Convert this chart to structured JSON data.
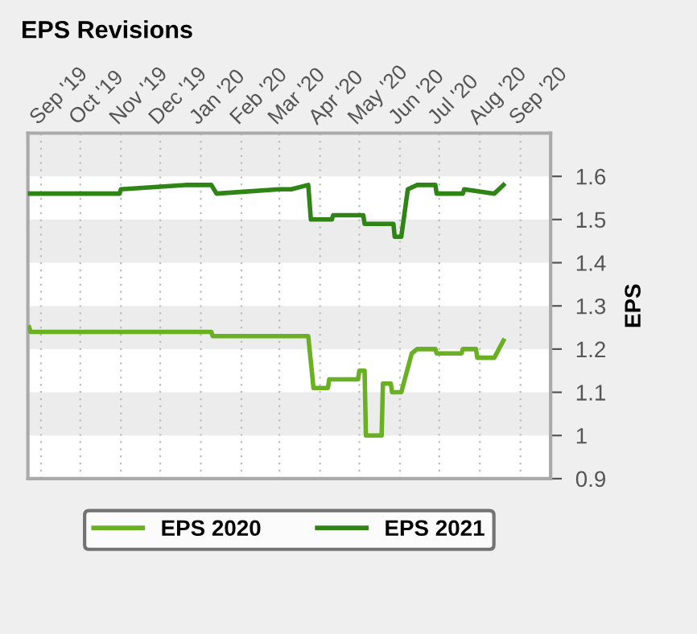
{
  "chart_data": {
    "type": "line",
    "title": "EPS Revisions",
    "ylabel": "EPS",
    "xlim": [
      "2019-08-22",
      "2020-09-24"
    ],
    "xticks": [
      {
        "value": "2019-09-01",
        "label": "Sep '19"
      },
      {
        "value": "2019-10-01",
        "label": "Oct '19"
      },
      {
        "value": "2019-11-01",
        "label": "Nov '19"
      },
      {
        "value": "2019-12-01",
        "label": "Dec '19"
      },
      {
        "value": "2020-01-01",
        "label": "Jan '20"
      },
      {
        "value": "2020-02-01",
        "label": "Feb '20"
      },
      {
        "value": "2020-03-01",
        "label": "Mar '20"
      },
      {
        "value": "2020-04-01",
        "label": "Apr '20"
      },
      {
        "value": "2020-05-01",
        "label": "May '20"
      },
      {
        "value": "2020-06-01",
        "label": "Jun '20"
      },
      {
        "value": "2020-07-01",
        "label": "Jul '20"
      },
      {
        "value": "2020-08-01",
        "label": "Aug '20"
      },
      {
        "value": "2020-09-01",
        "label": "Sep '20"
      }
    ],
    "ylim": [
      0.9,
      1.7
    ],
    "yticks": [
      0.9,
      1,
      1.1,
      1.2,
      1.3,
      1.4,
      1.5,
      1.6
    ],
    "grid": true,
    "legend": "bottom",
    "marker": "none",
    "line_style": "solid",
    "series": [
      {
        "name": "EPS 2020",
        "color": "#6ab023",
        "x": [
          "2019-08-23",
          "2019-08-24",
          "2019-10-31",
          "2019-11-01",
          "2020-01-09",
          "2020-01-10",
          "2020-03-10",
          "2020-03-23",
          "2020-03-27",
          "2020-04-07",
          "2020-04-08",
          "2020-04-30",
          "2020-05-01",
          "2020-05-05",
          "2020-05-06",
          "2020-05-18",
          "2020-05-19",
          "2020-05-25",
          "2020-05-26",
          "2020-06-02",
          "2020-06-10",
          "2020-06-14",
          "2020-06-28",
          "2020-06-29",
          "2020-07-18",
          "2020-07-19",
          "2020-07-29",
          "2020-07-30",
          "2020-08-12",
          "2020-08-19"
        ],
        "values": [
          1.25,
          1.24,
          1.24,
          1.24,
          1.24,
          1.23,
          1.23,
          1.23,
          1.11,
          1.11,
          1.13,
          1.13,
          1.15,
          1.15,
          1.0,
          1.0,
          1.12,
          1.12,
          1.1,
          1.1,
          1.19,
          1.2,
          1.2,
          1.19,
          1.19,
          1.2,
          1.2,
          1.18,
          1.18,
          1.22
        ]
      },
      {
        "name": "EPS 2021",
        "color": "#2e8516",
        "x": [
          "2019-08-23",
          "2019-10-31",
          "2019-11-01",
          "2019-12-20",
          "2020-01-09",
          "2020-01-13",
          "2020-03-01",
          "2020-03-10",
          "2020-03-23",
          "2020-03-25",
          "2020-04-10",
          "2020-04-11",
          "2020-05-04",
          "2020-05-05",
          "2020-05-27",
          "2020-05-28",
          "2020-06-02",
          "2020-06-07",
          "2020-06-14",
          "2020-06-28",
          "2020-06-29",
          "2020-07-19",
          "2020-07-20",
          "2020-08-12",
          "2020-08-19"
        ],
        "values": [
          1.56,
          1.56,
          1.57,
          1.58,
          1.58,
          1.56,
          1.57,
          1.57,
          1.58,
          1.5,
          1.5,
          1.51,
          1.51,
          1.49,
          1.49,
          1.46,
          1.46,
          1.57,
          1.58,
          1.58,
          1.56,
          1.56,
          1.57,
          1.56,
          1.58
        ]
      }
    ]
  }
}
